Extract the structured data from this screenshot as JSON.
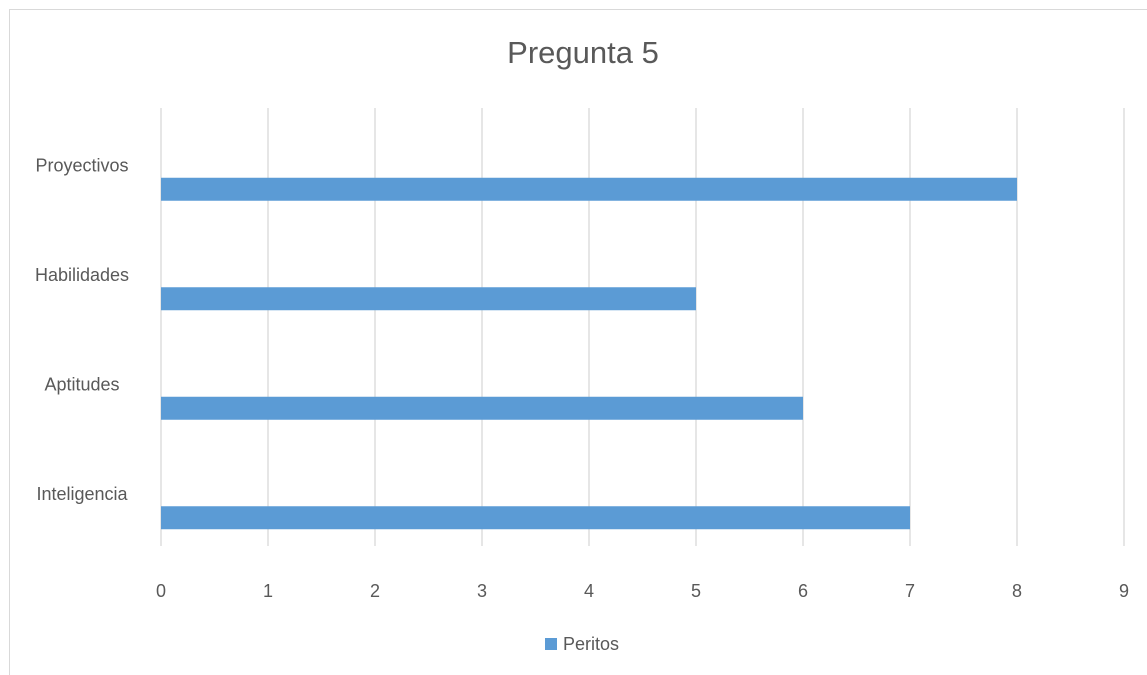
{
  "chart_data": {
    "type": "bar",
    "orientation": "horizontal",
    "title": "Pregunta 5",
    "categories": [
      "Inteligencia",
      "Aptitudes",
      "Habilidades",
      "Proyectivos"
    ],
    "series": [
      {
        "name": "Peritos",
        "color": "#5b9bd5",
        "values": [
          7,
          6,
          5,
          8
        ]
      }
    ],
    "xlim": [
      0,
      9
    ],
    "xticks": [
      0,
      1,
      2,
      3,
      4,
      5,
      6,
      7,
      8,
      9
    ],
    "grid": true,
    "legend": "bottom"
  }
}
